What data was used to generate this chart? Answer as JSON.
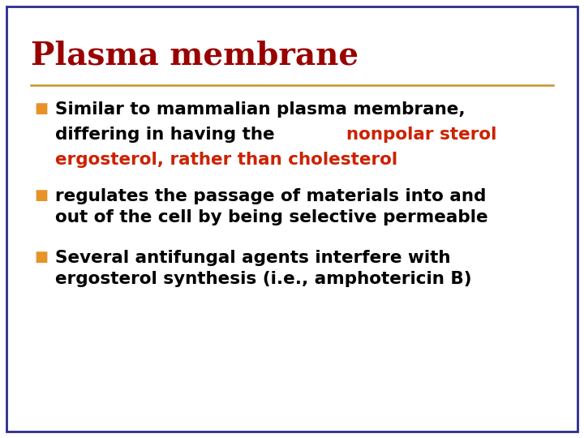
{
  "title": "Plasma membrane",
  "title_color": "#990000",
  "title_fontsize": 28,
  "background_color": "#FFFFFF",
  "border_color": "#2B2B8B",
  "border_linewidth": 2.0,
  "separator_color": "#C8922A",
  "separator_linewidth": 1.8,
  "bullet_color": "#E8922A",
  "bullet_char": "■",
  "bullet_size": 13,
  "text_color": "#000000",
  "highlight_color": "#CC2200",
  "text_fontsize": 15.5,
  "line1_black": "Similar to mammalian plasma membrane,",
  "line2_black": "differing in having the ",
  "line2_red": "nonpolar sterol",
  "line3_red": "ergosterol, rather than cholesterol",
  "bullet2_text": "regulates the passage of materials into and\nout of the cell by being selective permeable",
  "bullet3_text": "Several antifungal agents interfere with\nergosterol synthesis (i.e., amphotericin B)"
}
